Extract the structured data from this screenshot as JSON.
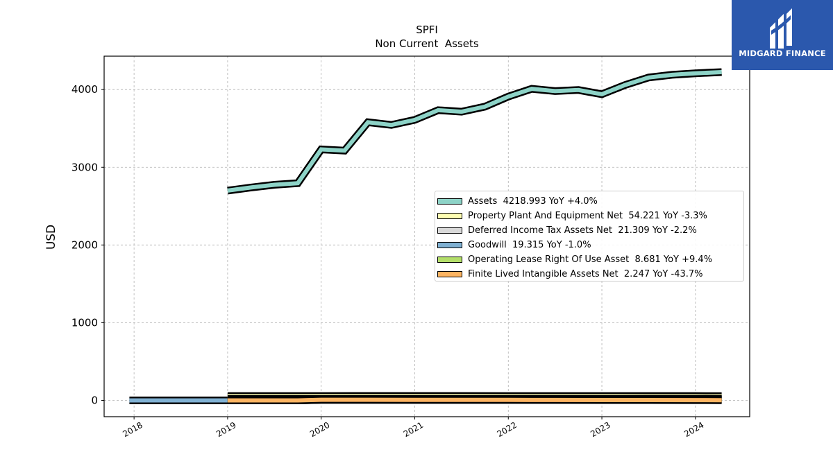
{
  "chart_data": {
    "type": "area",
    "title": "SPFI",
    "subtitle": "Non Current  Assets",
    "ylabel": "USD",
    "xlabel": "",
    "xlim": [
      2017.68,
      2024.58
    ],
    "ylim": [
      -210,
      4430
    ],
    "x_ticks": [
      "2018",
      "2019",
      "2020",
      "2021",
      "2022",
      "2023",
      "2024"
    ],
    "y_ticks": [
      0,
      1000,
      2000,
      3000,
      4000
    ],
    "grid": true,
    "legend_position": "center-right",
    "series": [
      {
        "name": "Assets  4218.993 YoY +4.0%",
        "color": "#8dd3c7",
        "x": [
          2019.0,
          2019.25,
          2019.5,
          2019.75,
          2020.0,
          2020.25,
          2020.5,
          2020.75,
          2021.0,
          2021.25,
          2021.5,
          2021.75,
          2022.0,
          2022.25,
          2022.5,
          2022.75,
          2023.0,
          2023.25,
          2023.5,
          2023.75,
          2024.0,
          2024.28
        ],
        "y": [
          2700,
          2740,
          2775,
          2795,
          3230,
          3215,
          3580,
          3545,
          3610,
          3735,
          3715,
          3780,
          3910,
          4010,
          3980,
          3995,
          3940,
          4060,
          4155,
          4190,
          4210,
          4225
        ]
      },
      {
        "name": "Property Plant And Equipment Net  54.221 YoY -3.3%",
        "color": "#ffffb3",
        "x": [
          2019.0,
          2019.75,
          2020.0,
          2020.5,
          2021.0,
          2021.5,
          2022.0,
          2022.5,
          2023.0,
          2023.5,
          2024.0,
          2024.28
        ],
        "y": [
          56,
          56,
          56,
          57,
          57,
          57,
          56,
          56,
          55,
          55,
          55,
          54
        ]
      },
      {
        "name": "Deferred Income Tax Assets Net  21.309 YoY -2.2%",
        "color": "#d9d9d9",
        "x": [
          2019.0,
          2019.75,
          2020.0,
          2020.5,
          2021.0,
          2021.5,
          2022.0,
          2022.5,
          2023.0,
          2023.5,
          2024.0,
          2024.28
        ],
        "y": [
          20,
          20,
          20,
          21,
          21,
          21,
          21,
          21,
          21,
          22,
          22,
          21
        ]
      },
      {
        "name": "Goodwill  19.315 YoY -1.0%",
        "color": "#80b1d3",
        "x": [
          2017.95,
          2018.5,
          2019.0,
          2019.5,
          2020.0,
          2020.5,
          2021.0,
          2021.5,
          2022.0,
          2022.5,
          2023.0,
          2023.5,
          2024.0,
          2024.28
        ],
        "y": [
          0,
          0,
          0,
          0,
          19,
          19,
          19,
          19,
          19,
          19,
          19,
          19,
          19,
          19
        ]
      },
      {
        "name": "Operating Lease Right Of Use Asset  8.681 YoY +9.4%",
        "color": "#b3de69",
        "x": [
          2019.0,
          2019.75,
          2020.0,
          2020.5,
          2021.0,
          2021.5,
          2022.0,
          2022.5,
          2023.0,
          2023.5,
          2024.0,
          2024.28
        ],
        "y": [
          0,
          0,
          6,
          6,
          7,
          7,
          7,
          8,
          8,
          8,
          9,
          9
        ]
      },
      {
        "name": "Finite Lived Intangible Assets Net  2.247 YoY -43.7%",
        "color": "#fdb462",
        "x": [
          2019.0,
          2019.75,
          2020.0,
          2020.5,
          2021.0,
          2021.5,
          2022.0,
          2022.5,
          2023.0,
          2023.5,
          2024.0,
          2024.28
        ],
        "y": [
          0,
          0,
          8,
          8,
          7,
          6,
          6,
          5,
          4,
          4,
          3,
          2
        ]
      }
    ]
  },
  "logo": {
    "text": "MIDGARD FINANCE",
    "background": "#2b58ad"
  }
}
